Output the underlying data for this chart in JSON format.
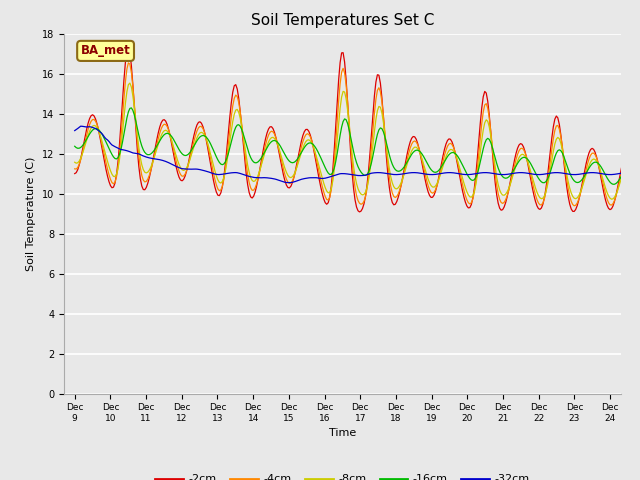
{
  "title": "Soil Temperatures Set C",
  "xlabel": "Time",
  "ylabel": "Soil Temperature (C)",
  "ylim": [
    0,
    18
  ],
  "yticks": [
    0,
    2,
    4,
    6,
    8,
    10,
    12,
    14,
    16,
    18
  ],
  "xtick_labels": [
    "Dec 9",
    "Dec 10",
    "Dec 11",
    "Dec 12",
    "Dec 13",
    "Dec 14",
    "Dec 15",
    "Dec 16",
    "Dec 17",
    "Dec 18",
    "Dec 19",
    "Dec 20",
    "Dec 21",
    "Dec 22",
    "Dec 23",
    "Dec 24"
  ],
  "legend_labels": [
    "-2cm",
    "-4cm",
    "-8cm",
    "-16cm",
    "-32cm"
  ],
  "legend_colors": [
    "#dd0000",
    "#ff8800",
    "#cccc00",
    "#00bb00",
    "#0000cc"
  ],
  "annotation_text": "BA_met",
  "background_color": "#e8e8e8",
  "plot_bg_color": "#e8e8e8"
}
